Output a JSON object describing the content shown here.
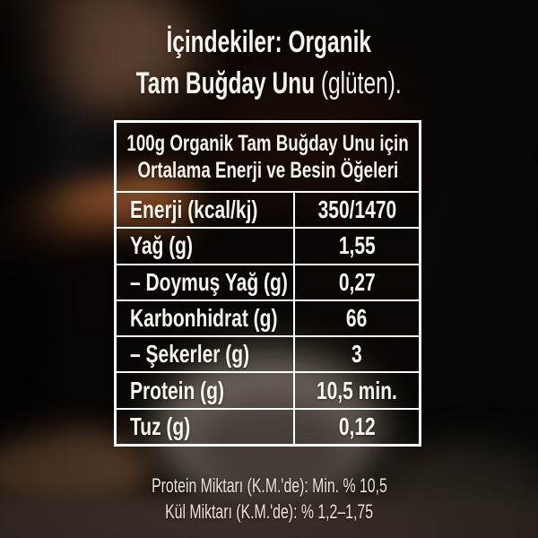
{
  "title": {
    "line1": "İçindekiler: Organik",
    "line2_bold": "Tam Buğday Unu",
    "line2_regular": " (glüten)."
  },
  "table": {
    "header": {
      "line1": "100g Organik Tam Buğday Unu için",
      "line2": "Ortalama Enerji ve Besin Öğeleri"
    },
    "rows": [
      {
        "label": "Enerji (kcal/kj)",
        "value": "350/1470"
      },
      {
        "label": "Yağ (g)",
        "value": "1,55"
      },
      {
        "label": "– Doymuş Yağ (g)",
        "value": "0,27"
      },
      {
        "label": "Karbonhidrat (g)",
        "value": "66"
      },
      {
        "label": "– Şekerler (g)",
        "value": "3"
      },
      {
        "label": "Protein (g)",
        "value": "10,5 min."
      },
      {
        "label": "Tuz (g)",
        "value": "0,12"
      }
    ]
  },
  "footer": {
    "line1": "Protein Miktarı (K.M.'de): Min. % 10,5",
    "line2": "Kül Miktarı (K.M.'de): % 1,2–1,75"
  },
  "colors": {
    "text": "#f7f4ee",
    "table_border": "#ffffff",
    "footer_text": "#eae3d6",
    "background": "#0b0704"
  }
}
